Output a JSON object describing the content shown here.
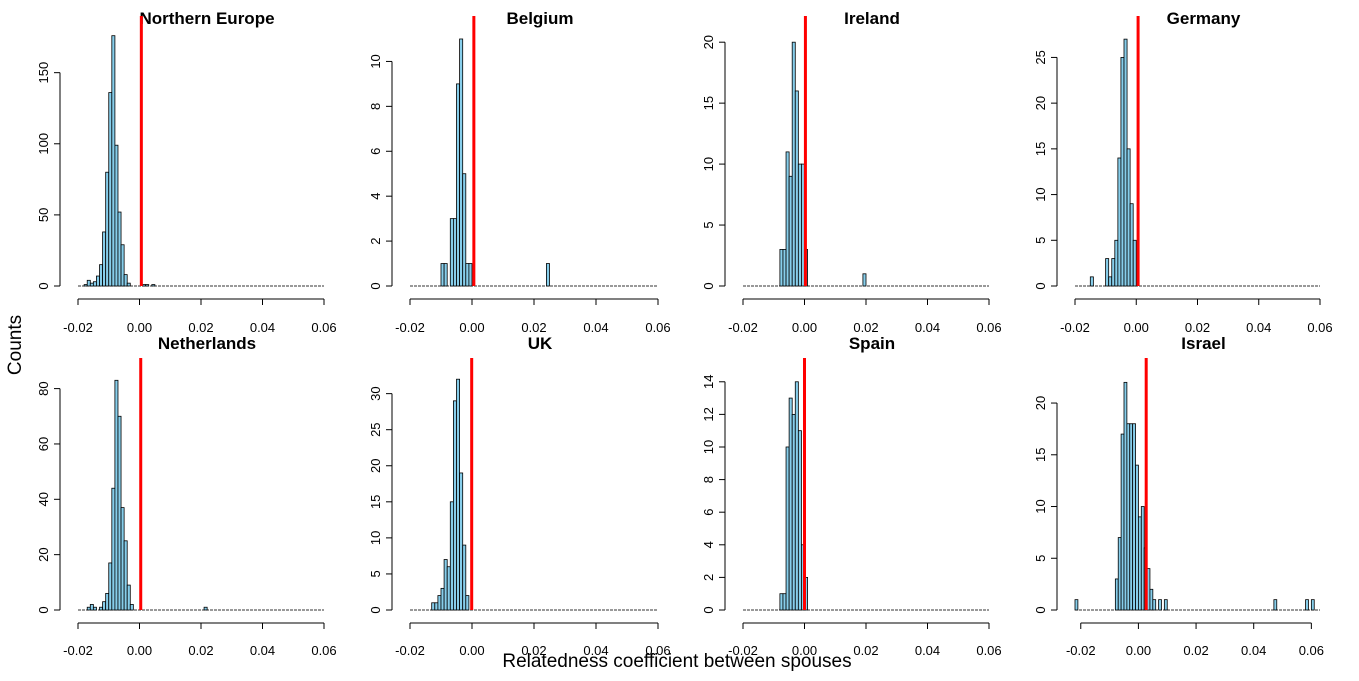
{
  "figure": {
    "xlabel": "Relatedness coefficient between spouses",
    "ylabel": "Counts",
    "bar_fill": "#87ceeb",
    "bar_stroke": "#000000",
    "mean_line_color": "#ff0000"
  },
  "chart_data": [
    {
      "type": "bar",
      "title": "Northern Europe",
      "xlim": [
        -0.02,
        0.06
      ],
      "ylim": [
        0,
        180
      ],
      "xticks": [
        -0.02,
        0.0,
        0.02,
        0.04,
        0.06
      ],
      "xtick_labels": [
        "-0.02",
        "0.00",
        "0.02",
        "0.04",
        "0.06"
      ],
      "yticks": [
        0,
        50,
        100,
        150
      ],
      "ytick_labels": [
        "0",
        "50",
        "100",
        "150"
      ],
      "bin_start": -0.018,
      "bin_width": 0.001,
      "bin_end": 0.06,
      "counts": [
        1,
        4,
        2,
        3,
        7,
        15,
        38,
        80,
        136,
        176,
        99,
        52,
        29,
        8,
        2,
        0,
        0,
        0,
        0,
        1,
        1,
        0,
        1
      ],
      "mean_line": 0.0006
    },
    {
      "type": "bar",
      "title": "Belgium",
      "xlim": [
        -0.02,
        0.06
      ],
      "ylim": [
        0,
        11.4
      ],
      "xticks": [
        -0.02,
        0.0,
        0.02,
        0.04,
        0.06
      ],
      "xtick_labels": [
        "-0.02",
        "0.00",
        "0.02",
        "0.04",
        "0.06"
      ],
      "yticks": [
        0,
        2,
        4,
        6,
        8,
        10
      ],
      "ytick_labels": [
        "0",
        "2",
        "4",
        "6",
        "8",
        "10"
      ],
      "bin_start": -0.01,
      "bin_width": 0.001,
      "bin_end": 0.06,
      "counts": [
        1,
        1,
        0,
        3,
        3,
        9,
        11,
        5,
        1,
        1,
        0,
        0,
        0,
        0,
        0,
        0,
        0,
        0,
        0,
        0,
        0,
        0,
        0,
        0,
        0,
        0,
        0,
        0,
        0,
        0,
        0,
        0,
        0,
        0,
        1
      ],
      "mean_line": 0.0006
    },
    {
      "type": "bar",
      "title": "Ireland",
      "xlim": [
        -0.02,
        0.06
      ],
      "ylim": [
        0,
        21
      ],
      "xticks": [
        -0.02,
        0.0,
        0.02,
        0.04,
        0.06
      ],
      "xtick_labels": [
        "-0.02",
        "0.00",
        "0.02",
        "0.04",
        "0.06"
      ],
      "yticks": [
        0,
        5,
        10,
        15,
        20
      ],
      "ytick_labels": [
        "0",
        "5",
        "10",
        "15",
        "20"
      ],
      "bin_start": -0.008,
      "bin_width": 0.001,
      "bin_end": 0.06,
      "counts": [
        3,
        3,
        11,
        9,
        20,
        16,
        10,
        10,
        3,
        0,
        0,
        0,
        0,
        0,
        0,
        0,
        0,
        0,
        0,
        0,
        0,
        0,
        0,
        0,
        0,
        0,
        0,
        1
      ],
      "mean_line": 0.0003
    },
    {
      "type": "bar",
      "title": "Germany",
      "xlim": [
        -0.02,
        0.06
      ],
      "ylim": [
        0,
        28
      ],
      "xticks": [
        -0.02,
        0.0,
        0.02,
        0.04,
        0.06
      ],
      "xtick_labels": [
        "-0.02",
        "0.00",
        "0.02",
        "0.04",
        "0.06"
      ],
      "yticks": [
        0,
        5,
        10,
        15,
        20,
        25
      ],
      "ytick_labels": [
        "0",
        "5",
        "10",
        "15",
        "20",
        "25"
      ],
      "bin_start": -0.015,
      "bin_width": 0.001,
      "bin_end": 0.06,
      "counts": [
        1,
        0,
        0,
        0,
        0,
        3,
        1,
        3,
        5,
        14,
        25,
        27,
        15,
        9,
        5
      ],
      "mean_line": 0.0006
    },
    {
      "type": "bar",
      "title": "Netherlands",
      "xlim": [
        -0.02,
        0.06
      ],
      "ylim": [
        0,
        86
      ],
      "xticks": [
        -0.02,
        0.0,
        0.02,
        0.04,
        0.06
      ],
      "xtick_labels": [
        "-0.02",
        "0.00",
        "0.02",
        "0.04",
        "0.06"
      ],
      "yticks": [
        0,
        20,
        40,
        60,
        80
      ],
      "ytick_labels": [
        "0",
        "20",
        "40",
        "60",
        "80"
      ],
      "bin_start": -0.017,
      "bin_width": 0.001,
      "bin_end": 0.06,
      "counts": [
        1,
        2,
        1,
        0,
        1,
        3,
        6,
        17,
        44,
        83,
        70,
        37,
        25,
        9,
        2,
        0,
        0,
        0,
        0,
        0,
        0,
        0,
        0,
        0,
        0,
        0,
        0,
        0,
        0,
        0,
        0,
        0,
        0,
        0,
        0,
        0,
        0,
        0,
        1
      ],
      "mean_line": 0.0004
    },
    {
      "type": "bar",
      "title": "UK",
      "xlim": [
        -0.02,
        0.06
      ],
      "ylim": [
        0,
        33
      ],
      "xticks": [
        -0.02,
        0.0,
        0.02,
        0.04,
        0.06
      ],
      "xtick_labels": [
        "-0.02",
        "0.00",
        "0.02",
        "0.04",
        "0.06"
      ],
      "yticks": [
        0,
        5,
        10,
        15,
        20,
        25,
        30
      ],
      "ytick_labels": [
        "0",
        "5",
        "10",
        "15",
        "20",
        "25",
        "30"
      ],
      "bin_start": -0.013,
      "bin_width": 0.001,
      "bin_end": 0.06,
      "counts": [
        1,
        1,
        2,
        3,
        7,
        6,
        15,
        29,
        32,
        19,
        9,
        2
      ],
      "mean_line": -0.0001
    },
    {
      "type": "bar",
      "title": "Spain",
      "xlim": [
        -0.02,
        0.06
      ],
      "ylim": [
        0,
        14.6
      ],
      "xticks": [
        -0.02,
        0.0,
        0.02,
        0.04,
        0.06
      ],
      "xtick_labels": [
        "-0.02",
        "0.00",
        "0.02",
        "0.04",
        "0.06"
      ],
      "yticks": [
        0,
        2,
        4,
        6,
        8,
        10,
        12,
        14
      ],
      "ytick_labels": [
        "0",
        "2",
        "4",
        "6",
        "8",
        "10",
        "12",
        "14"
      ],
      "bin_start": -0.008,
      "bin_width": 0.001,
      "bin_end": 0.06,
      "counts": [
        1,
        1,
        10,
        13,
        12,
        14,
        11,
        4,
        2
      ],
      "mean_line": 0.0
    },
    {
      "type": "bar",
      "title": "Israel",
      "xlim": [
        -0.022,
        0.063
      ],
      "ylim": [
        0,
        23
      ],
      "xticks": [
        -0.02,
        0.0,
        0.02,
        0.04,
        0.06
      ],
      "xtick_labels": [
        "-0.02",
        "0.00",
        "0.02",
        "0.04",
        "0.06"
      ],
      "yticks": [
        0,
        5,
        10,
        15,
        20
      ],
      "ytick_labels": [
        "0",
        "5",
        "10",
        "15",
        "20"
      ],
      "bin_start": -0.022,
      "bin_width": 0.001,
      "bin_end": 0.063,
      "counts": [
        1,
        0,
        0,
        0,
        0,
        0,
        0,
        0,
        0,
        0,
        0,
        0,
        0,
        0,
        3,
        7,
        17,
        22,
        18,
        18,
        18,
        14,
        9,
        10,
        6,
        4,
        2,
        1,
        0,
        1,
        0,
        1,
        0,
        0,
        0,
        0,
        0,
        0,
        0,
        0,
        0,
        0,
        0,
        0,
        0,
        0,
        0,
        0,
        0,
        0,
        0,
        0,
        0,
        0,
        0,
        0,
        0,
        0,
        0,
        0,
        0,
        0,
        0,
        0,
        0,
        0,
        0,
        0,
        0,
        1,
        0,
        0,
        0,
        0,
        0,
        0,
        0,
        0,
        0,
        0,
        1,
        0,
        1
      ],
      "mean_line": 0.0027
    }
  ]
}
